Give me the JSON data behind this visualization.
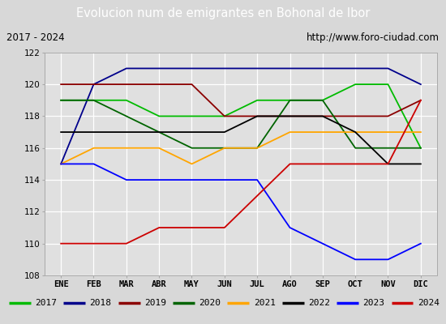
{
  "title": "Evolucion num de emigrantes en Bohonal de Ibor",
  "subtitle_left": "2017 - 2024",
  "subtitle_right": "http://www.foro-ciudad.com",
  "months": [
    "ENE",
    "FEB",
    "MAR",
    "ABR",
    "MAY",
    "JUN",
    "JUL",
    "AGO",
    "SEP",
    "OCT",
    "NOV",
    "DIC"
  ],
  "ylim": [
    108,
    122
  ],
  "yticks": [
    108,
    110,
    112,
    114,
    116,
    118,
    120,
    122
  ],
  "series": {
    "2017": {
      "color": "#00bb00",
      "values": [
        119,
        119,
        119,
        118,
        118,
        118,
        119,
        119,
        119,
        120,
        120,
        116
      ]
    },
    "2018": {
      "color": "#00008b",
      "values": [
        115,
        120,
        121,
        121,
        121,
        121,
        121,
        121,
        121,
        121,
        121,
        120
      ]
    },
    "2019": {
      "color": "#8b0000",
      "values": [
        120,
        120,
        120,
        120,
        120,
        118,
        118,
        118,
        118,
        118,
        118,
        119
      ]
    },
    "2020": {
      "color": "#006400",
      "values": [
        119,
        119,
        118,
        117,
        116,
        116,
        116,
        119,
        119,
        116,
        116,
        116
      ]
    },
    "2021": {
      "color": "#ffa500",
      "values": [
        115,
        116,
        116,
        116,
        115,
        116,
        116,
        117,
        117,
        117,
        117,
        117
      ]
    },
    "2022": {
      "color": "#000000",
      "values": [
        117,
        117,
        117,
        117,
        117,
        117,
        118,
        118,
        118,
        117,
        115,
        115
      ]
    },
    "2023": {
      "color": "#0000ff",
      "values": [
        115,
        115,
        114,
        114,
        114,
        114,
        114,
        111,
        110,
        109,
        109,
        110
      ]
    },
    "2024": {
      "color": "#cc0000",
      "values": [
        110,
        110,
        110,
        111,
        111,
        111,
        113,
        115,
        115,
        115,
        115,
        119
      ]
    }
  },
  "legend_order": [
    "2017",
    "2018",
    "2019",
    "2020",
    "2021",
    "2022",
    "2023",
    "2024"
  ],
  "bg_color": "#d8d8d8",
  "plot_bg_color": "#e0e0e0",
  "title_bg_color": "#4f6fbe",
  "title_color": "#ffffff",
  "grid_color": "#ffffff",
  "subtitle_bg": "#f0f0f0",
  "legend_bg": "#ffffff",
  "legend_border_color": "#3333aa"
}
